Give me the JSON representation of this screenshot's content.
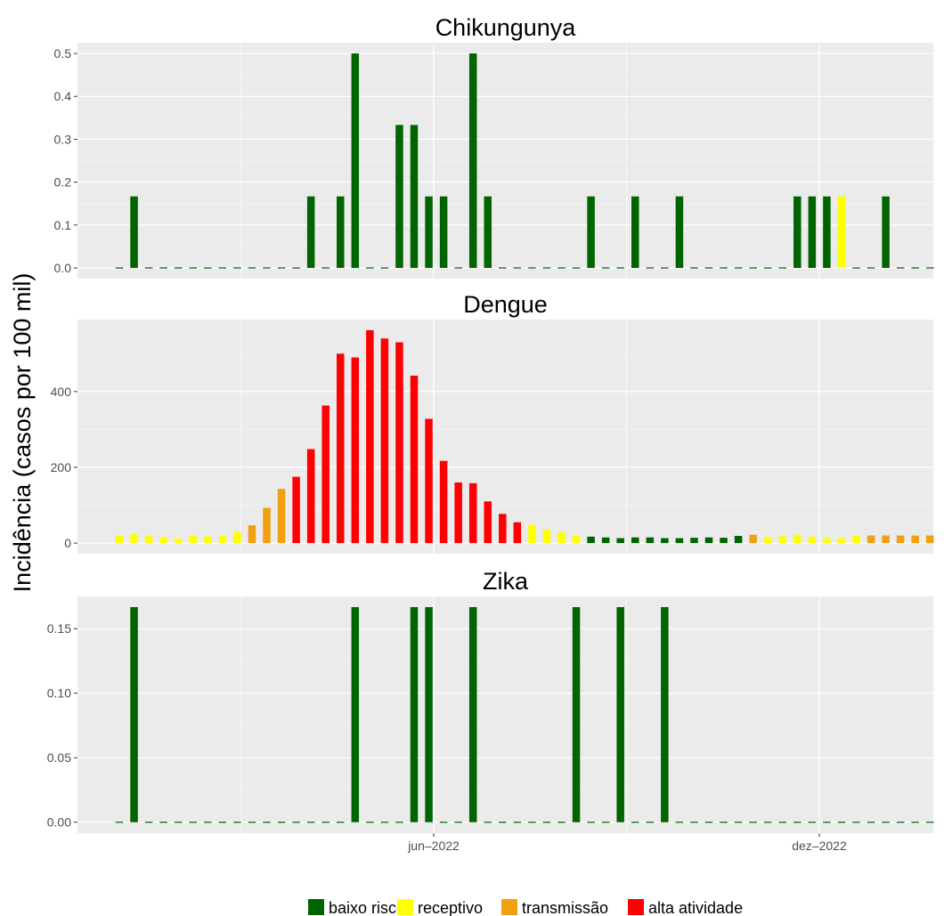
{
  "ylabel": "Incidência (casos por 100 mil)",
  "x_ticks": [
    "jun–2022",
    "dez–2022"
  ],
  "legend": [
    {
      "label": "baixo risco",
      "color": "#006400"
    },
    {
      "label": "receptivo",
      "color": "#FFFF00"
    },
    {
      "label": "transmissão",
      "color": "#F0A010"
    },
    {
      "label": "alta atividade",
      "color": "#FF0000"
    }
  ],
  "chart_data": [
    {
      "type": "bar",
      "title": "Chikungunya",
      "x_unit": "epidemiological week (2022)",
      "weeks": [
        1,
        2,
        3,
        4,
        5,
        6,
        7,
        8,
        9,
        10,
        11,
        12,
        13,
        14,
        15,
        16,
        17,
        18,
        19,
        20,
        21,
        22,
        23,
        24,
        25,
        26,
        27,
        28,
        29,
        30,
        31,
        32,
        33,
        34,
        35,
        36,
        37,
        38,
        39,
        40,
        41,
        42,
        43,
        44,
        45,
        46,
        47,
        48,
        49,
        50,
        51,
        52,
        53,
        54,
        55,
        56
      ],
      "values": [
        0,
        0.1667,
        0,
        0,
        0,
        0,
        0,
        0,
        0,
        0,
        0,
        0,
        0,
        0.1667,
        0,
        0.1667,
        0.5,
        0,
        0,
        0.3333,
        0.3333,
        0.1667,
        0.1667,
        0,
        0.5,
        0.1667,
        0,
        0,
        0,
        0,
        0,
        0,
        0.1667,
        0,
        0,
        0.1667,
        0,
        0,
        0.1667,
        0,
        0,
        0,
        0,
        0,
        0,
        0,
        0.1667,
        0.1667,
        0.1667,
        0.1667,
        0,
        0,
        0.1667,
        0,
        0,
        0
      ],
      "levels": [
        "baixo risco",
        "baixo risco",
        "baixo risco",
        "baixo risco",
        "baixo risco",
        "baixo risco",
        "baixo risco",
        "baixo risco",
        "baixo risco",
        "baixo risco",
        "baixo risco",
        "baixo risco",
        "baixo risco",
        "baixo risco",
        "baixo risco",
        "baixo risco",
        "baixo risco",
        "baixo risco",
        "baixo risco",
        "baixo risco",
        "baixo risco",
        "baixo risco",
        "baixo risco",
        "baixo risco",
        "baixo risco",
        "baixo risco",
        "baixo risco",
        "baixo risco",
        "baixo risco",
        "baixo risco",
        "baixo risco",
        "baixo risco",
        "baixo risco",
        "baixo risco",
        "baixo risco",
        "baixo risco",
        "baixo risco",
        "baixo risco",
        "baixo risco",
        "baixo risco",
        "baixo risco",
        "baixo risco",
        "baixo risco",
        "baixo risco",
        "baixo risco",
        "baixo risco",
        "baixo risco",
        "baixo risco",
        "baixo risco",
        "receptivo",
        "baixo risco",
        "baixo risco",
        "baixo risco",
        "baixo risco",
        "baixo risco",
        "baixo risco"
      ],
      "y_ticks": [
        "0.0",
        "0.1",
        "0.2",
        "0.3",
        "0.4",
        "0.5"
      ],
      "ylim": [
        -0.025,
        0.525
      ]
    },
    {
      "type": "bar",
      "title": "Dengue",
      "x_unit": "epidemiological week (2022)",
      "weeks": [
        1,
        2,
        3,
        4,
        5,
        6,
        7,
        8,
        9,
        10,
        11,
        12,
        13,
        14,
        15,
        16,
        17,
        18,
        19,
        20,
        21,
        22,
        23,
        24,
        25,
        26,
        27,
        28,
        29,
        30,
        31,
        32,
        33,
        34,
        35,
        36,
        37,
        38,
        39,
        40,
        41,
        42,
        43,
        44,
        45,
        46,
        47,
        48,
        49,
        50,
        51,
        52,
        53,
        54,
        55,
        56
      ],
      "values": [
        20,
        24,
        20,
        15,
        12,
        20,
        17,
        19,
        30,
        47,
        93,
        143,
        175,
        248,
        363,
        500,
        490,
        562,
        540,
        530,
        442,
        328,
        217,
        160,
        158,
        110,
        77,
        55,
        48,
        35,
        28,
        20,
        17,
        15,
        13,
        15,
        15,
        13,
        13,
        14,
        15,
        14,
        19,
        22,
        16,
        18,
        22,
        17,
        13,
        13,
        20,
        20,
        20,
        20,
        20,
        20
      ],
      "levels": [
        "receptivo",
        "receptivo",
        "receptivo",
        "receptivo",
        "receptivo",
        "receptivo",
        "receptivo",
        "receptivo",
        "receptivo",
        "transmissão",
        "transmissão",
        "transmissão",
        "alta atividade",
        "alta atividade",
        "alta atividade",
        "alta atividade",
        "alta atividade",
        "alta atividade",
        "alta atividade",
        "alta atividade",
        "alta atividade",
        "alta atividade",
        "alta atividade",
        "alta atividade",
        "alta atividade",
        "alta atividade",
        "alta atividade",
        "alta atividade",
        "receptivo",
        "receptivo",
        "receptivo",
        "receptivo",
        "baixo risco",
        "baixo risco",
        "baixo risco",
        "baixo risco",
        "baixo risco",
        "baixo risco",
        "baixo risco",
        "baixo risco",
        "baixo risco",
        "baixo risco",
        "baixo risco",
        "transmissão",
        "receptivo",
        "receptivo",
        "receptivo",
        "receptivo",
        "receptivo",
        "receptivo",
        "receptivo",
        "transmissão",
        "transmissão",
        "transmissão",
        "transmissão",
        "transmissão"
      ],
      "y_ticks": [
        "0",
        "200",
        "400"
      ],
      "ylim": [
        -28,
        590
      ]
    },
    {
      "type": "bar",
      "title": "Zika",
      "x_unit": "epidemiological week (2022)",
      "weeks": [
        1,
        2,
        3,
        4,
        5,
        6,
        7,
        8,
        9,
        10,
        11,
        12,
        13,
        14,
        15,
        16,
        17,
        18,
        19,
        20,
        21,
        22,
        23,
        24,
        25,
        26,
        27,
        28,
        29,
        30,
        31,
        32,
        33,
        34,
        35,
        36,
        37,
        38,
        39,
        40,
        41,
        42,
        43,
        44,
        45,
        46,
        47,
        48,
        49,
        50,
        51,
        52,
        53,
        54,
        55,
        56
      ],
      "values": [
        0,
        0.1667,
        0,
        0,
        0,
        0,
        0,
        0,
        0,
        0,
        0,
        0,
        0,
        0,
        0,
        0,
        0.1667,
        0,
        0,
        0,
        0.1667,
        0.1667,
        0,
        0,
        0.1667,
        0,
        0,
        0,
        0,
        0,
        0,
        0.1667,
        0,
        0,
        0.1667,
        0,
        0,
        0.1667,
        0,
        0,
        0,
        0,
        0,
        0,
        0,
        0,
        0,
        0,
        0,
        0,
        0,
        0,
        0,
        0,
        0,
        0
      ],
      "levels": [
        "baixo risco",
        "baixo risco",
        "baixo risco",
        "baixo risco",
        "baixo risco",
        "baixo risco",
        "baixo risco",
        "baixo risco",
        "baixo risco",
        "baixo risco",
        "baixo risco",
        "baixo risco",
        "baixo risco",
        "baixo risco",
        "baixo risco",
        "baixo risco",
        "baixo risco",
        "baixo risco",
        "baixo risco",
        "baixo risco",
        "baixo risco",
        "baixo risco",
        "baixo risco",
        "baixo risco",
        "baixo risco",
        "baixo risco",
        "baixo risco",
        "baixo risco",
        "baixo risco",
        "baixo risco",
        "baixo risco",
        "baixo risco",
        "baixo risco",
        "baixo risco",
        "baixo risco",
        "baixo risco",
        "baixo risco",
        "baixo risco",
        "baixo risco",
        "baixo risco",
        "baixo risco",
        "baixo risco",
        "baixo risco",
        "baixo risco",
        "baixo risco",
        "baixo risco",
        "baixo risco",
        "baixo risco",
        "baixo risco",
        "baixo risco",
        "baixo risco",
        "baixo risco",
        "baixo risco",
        "baixo risco",
        "baixo risco",
        "baixo risco"
      ],
      "y_ticks": [
        "0.00",
        "0.05",
        "0.10",
        "0.15"
      ],
      "ylim": [
        -0.0085,
        0.175
      ]
    }
  ]
}
